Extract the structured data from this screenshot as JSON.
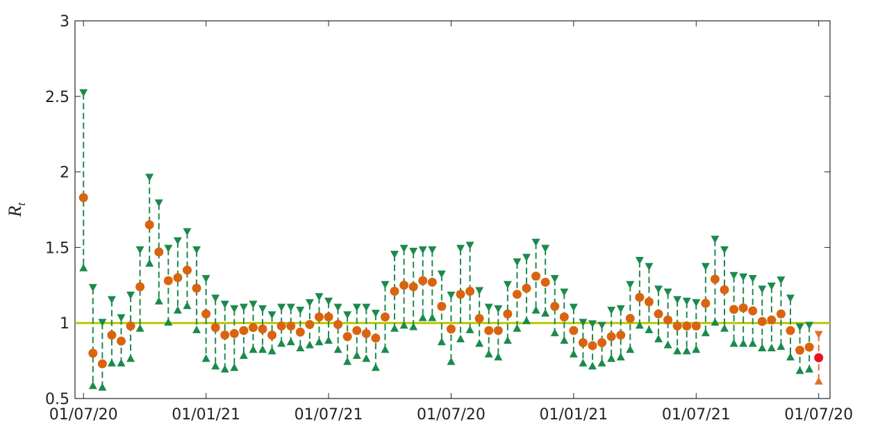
{
  "chart_data": {
    "type": "errorbar",
    "ylabel": {
      "base": "R",
      "sub": "t"
    },
    "xlim": [
      -0.9,
      79.2
    ],
    "xticks": [
      {
        "value": 0,
        "label": "01/07/20"
      },
      {
        "value": 13,
        "label": "01/01/21"
      },
      {
        "value": 26,
        "label": "01/07/21"
      },
      {
        "value": 39,
        "label": "01/07/20"
      },
      {
        "value": 52,
        "label": "01/01/21"
      },
      {
        "value": 65,
        "label": "01/07/21"
      },
      {
        "value": 78,
        "label": "01/07/20"
      }
    ],
    "ylim": [
      0.5,
      3
    ],
    "yticks": [
      0.5,
      1,
      1.5,
      2,
      2.5,
      3
    ],
    "reference_line": {
      "y": 1,
      "color": "#b8c400"
    },
    "last_point_color": "#e8141c",
    "last_bound_color": "#e07028",
    "series": [
      {
        "name": "mean",
        "color": "#d9640f",
        "values": [
          1.83,
          0.8,
          0.73,
          0.92,
          0.88,
          0.98,
          1.24,
          1.65,
          1.47,
          1.28,
          1.3,
          1.35,
          1.23,
          1.06,
          0.97,
          0.92,
          0.93,
          0.95,
          0.97,
          0.96,
          0.92,
          0.98,
          0.98,
          0.94,
          0.99,
          1.04,
          1.04,
          0.99,
          0.91,
          0.95,
          0.93,
          0.9,
          1.04,
          1.21,
          1.25,
          1.24,
          1.28,
          1.27,
          1.11,
          0.96,
          1.19,
          1.21,
          1.03,
          0.95,
          0.95,
          1.06,
          1.19,
          1.23,
          1.31,
          1.27,
          1.11,
          1.04,
          0.95,
          0.87,
          0.85,
          0.87,
          0.91,
          0.92,
          1.03,
          1.17,
          1.14,
          1.06,
          1.02,
          0.98,
          0.98,
          0.98,
          1.13,
          1.29,
          1.22,
          1.09,
          1.1,
          1.08,
          1.01,
          1.02,
          1.06,
          0.95,
          0.82,
          0.84,
          0.77
        ]
      },
      {
        "name": "upper",
        "color": "#1b8a4c",
        "values": [
          2.52,
          1.23,
          1.0,
          1.15,
          1.03,
          1.18,
          1.48,
          1.96,
          1.79,
          1.49,
          1.54,
          1.6,
          1.48,
          1.29,
          1.16,
          1.12,
          1.09,
          1.1,
          1.12,
          1.09,
          1.05,
          1.1,
          1.1,
          1.08,
          1.13,
          1.17,
          1.14,
          1.1,
          1.05,
          1.1,
          1.1,
          1.06,
          1.25,
          1.45,
          1.49,
          1.47,
          1.48,
          1.48,
          1.32,
          1.18,
          1.49,
          1.51,
          1.21,
          1.1,
          1.09,
          1.25,
          1.4,
          1.43,
          1.53,
          1.49,
          1.29,
          1.2,
          1.1,
          1.0,
          0.99,
          0.98,
          1.08,
          1.09,
          1.25,
          1.41,
          1.37,
          1.22,
          1.2,
          1.15,
          1.14,
          1.13,
          1.37,
          1.55,
          1.48,
          1.31,
          1.3,
          1.29,
          1.22,
          1.24,
          1.28,
          1.16,
          0.97,
          0.98,
          0.92
        ]
      },
      {
        "name": "lower",
        "color": "#1b8a4c",
        "values": [
          1.37,
          0.59,
          0.58,
          0.74,
          0.74,
          0.77,
          0.97,
          1.4,
          1.15,
          1.01,
          1.09,
          1.12,
          0.96,
          0.77,
          0.72,
          0.7,
          0.71,
          0.79,
          0.83,
          0.83,
          0.82,
          0.87,
          0.88,
          0.84,
          0.86,
          0.88,
          0.89,
          0.83,
          0.75,
          0.79,
          0.77,
          0.71,
          0.83,
          0.97,
          0.99,
          0.98,
          1.04,
          1.04,
          0.88,
          0.75,
          0.9,
          0.96,
          0.87,
          0.8,
          0.78,
          0.89,
          0.97,
          1.02,
          1.09,
          1.07,
          0.94,
          0.89,
          0.8,
          0.74,
          0.72,
          0.74,
          0.77,
          0.78,
          0.83,
          0.99,
          0.96,
          0.9,
          0.86,
          0.82,
          0.82,
          0.83,
          0.94,
          1.01,
          0.97,
          0.87,
          0.87,
          0.87,
          0.84,
          0.84,
          0.85,
          0.78,
          0.69,
          0.7,
          0.62
        ]
      }
    ]
  }
}
